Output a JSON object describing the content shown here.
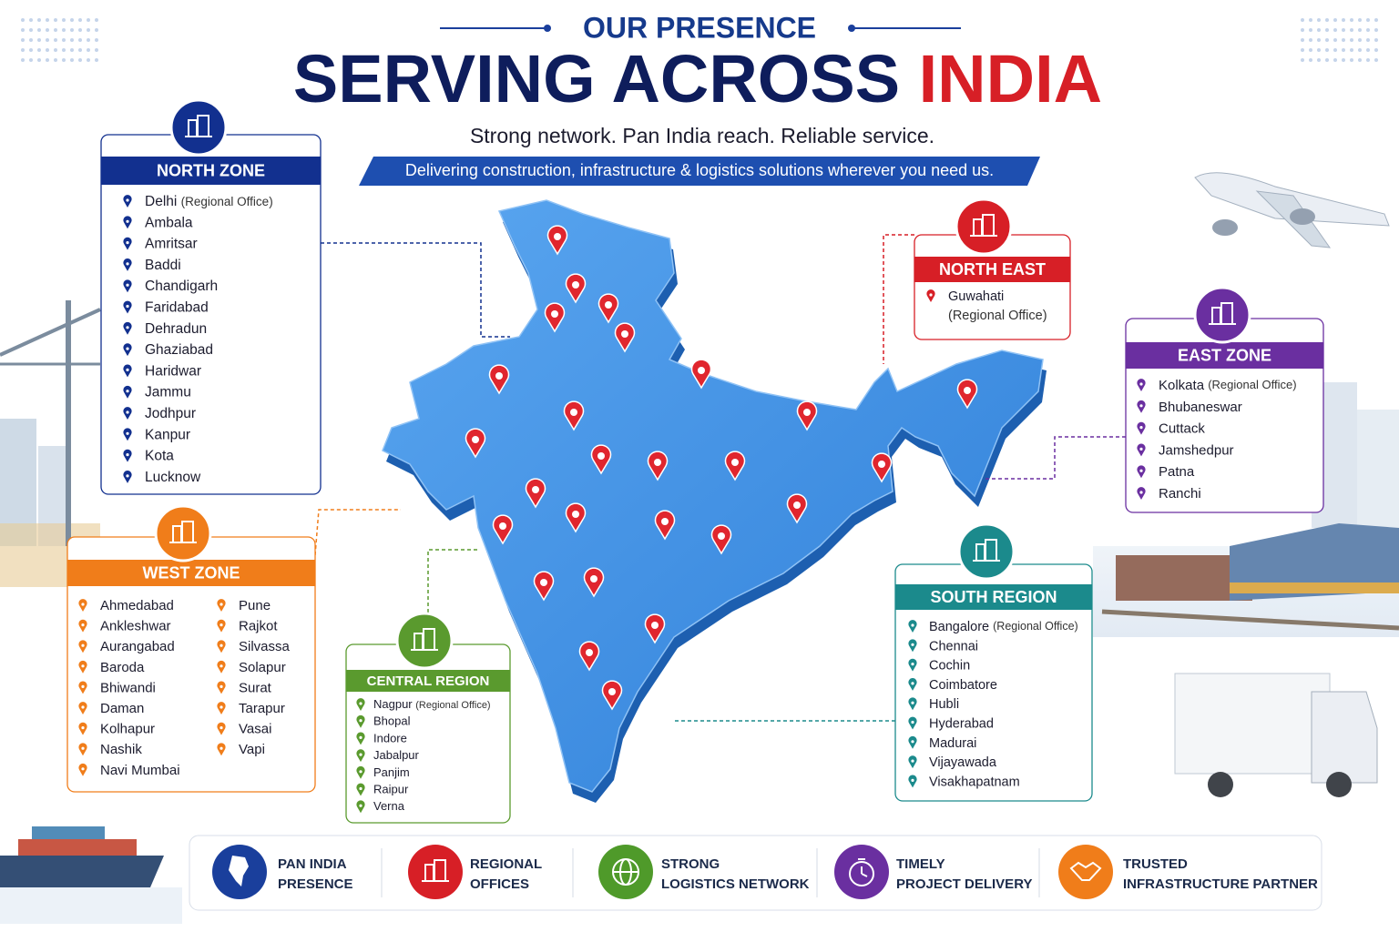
{
  "header": {
    "eyebrow": "OUR PRESENCE",
    "title": "SERVING ACROSS",
    "title_highlight": "INDIA",
    "tagline": "Strong network. Pan India reach. Reliable service.",
    "banner": "Delivering construction, infrastructure & logistics solutions wherever you need us."
  },
  "zones": [
    {
      "title": "NORTH ZONE",
      "color": "#12308f",
      "locations": [
        {
          "name": "Delhi",
          "note": "(Regional Office)"
        },
        {
          "name": "Ambala"
        },
        {
          "name": "Amritsar"
        },
        {
          "name": "Baddi"
        },
        {
          "name": "Chandigarh"
        },
        {
          "name": "Faridabad"
        },
        {
          "name": "Dehradun"
        },
        {
          "name": "Ghaziabad"
        },
        {
          "name": "Haridwar"
        },
        {
          "name": "Jammu"
        },
        {
          "name": "Jodhpur"
        },
        {
          "name": "Kanpur"
        },
        {
          "name": "Kota"
        },
        {
          "name": "Lucknow"
        }
      ]
    },
    {
      "title": "NORTH EAST",
      "color": "#d71f26",
      "locations": [
        {
          "name": "Guwahati",
          "note": "(Regional Office)"
        }
      ]
    },
    {
      "title": "EAST ZONE",
      "color": "#6a2fa0",
      "locations": [
        {
          "name": "Kolkata",
          "note": "(Regional Office)"
        },
        {
          "name": "Bhubaneswar"
        },
        {
          "name": "Cuttack"
        },
        {
          "name": "Jamshedpur"
        },
        {
          "name": "Patna"
        },
        {
          "name": "Ranchi"
        }
      ]
    },
    {
      "title": "WEST ZONE",
      "color": "#f07d1a",
      "locations": [
        {
          "name": "Ahmedabad"
        },
        {
          "name": "Ankleshwar"
        },
        {
          "name": "Aurangabad"
        },
        {
          "name": "Baroda"
        },
        {
          "name": "Bhiwandi"
        },
        {
          "name": "Daman"
        },
        {
          "name": "Kolhapur"
        },
        {
          "name": "Nashik"
        },
        {
          "name": "Navi Mumbai"
        },
        {
          "name": "Pune"
        },
        {
          "name": "Rajkot"
        },
        {
          "name": "Silvassa"
        },
        {
          "name": "Solapur"
        },
        {
          "name": "Surat"
        },
        {
          "name": "Tarapur"
        },
        {
          "name": "Vasai"
        },
        {
          "name": "Vapi"
        }
      ]
    },
    {
      "title": "CENTRAL REGION",
      "color": "#5a9a2e",
      "locations": [
        {
          "name": "Nagpur",
          "note": "(Regional Office)"
        },
        {
          "name": "Bhopal"
        },
        {
          "name": "Indore"
        },
        {
          "name": "Jabalpur"
        },
        {
          "name": "Panjim"
        },
        {
          "name": "Raipur"
        },
        {
          "name": "Verna"
        }
      ]
    },
    {
      "title": "SOUTH REGION",
      "color": "#1b8a8c",
      "locations": [
        {
          "name": "Bangalore",
          "note": "(Regional Office)"
        },
        {
          "name": "Chennai"
        },
        {
          "name": "Cochin"
        },
        {
          "name": "Coimbatore"
        },
        {
          "name": "Hubli"
        },
        {
          "name": "Hyderabad"
        },
        {
          "name": "Madurai"
        },
        {
          "name": "Vijayawada"
        },
        {
          "name": "Visakhapatnam"
        }
      ]
    }
  ],
  "features": [
    {
      "line1": "PAN INDIA",
      "line2": "PRESENCE",
      "color": "#1a3f9c"
    },
    {
      "line1": "REGIONAL",
      "line2": "OFFICES",
      "color": "#d71f26"
    },
    {
      "line1": "STRONG",
      "line2": "LOGISTICS NETWORK",
      "color": "#4f9a2a"
    },
    {
      "line1": "TIMELY",
      "line2": "PROJECT DELIVERY",
      "color": "#6a2fa0"
    },
    {
      "line1": "TRUSTED",
      "line2": "INFRASTRUCTURE PARTNER",
      "color": "#f07d1a"
    }
  ]
}
